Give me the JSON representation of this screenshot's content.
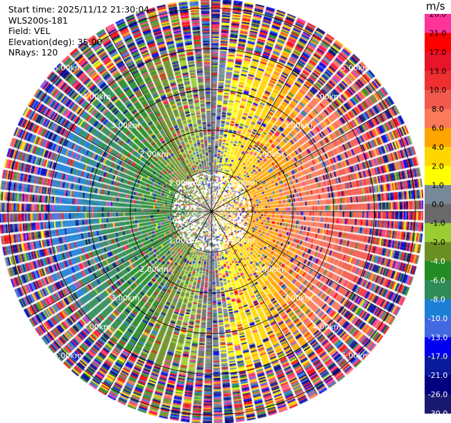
{
  "info": {
    "start_time": "Start time: 2025/11/12 21:30:04",
    "instrument": "WLS200s-181",
    "field": "Field: VEL",
    "elevation": "Elevation(deg): 35.00",
    "nrays": "NRays: 120"
  },
  "colorbar": {
    "unit": "m/s",
    "tick_labels": [
      "26.0",
      "21.0",
      "17.0",
      "13.0",
      "10.0",
      "8.0",
      "6.0",
      "4.0",
      "2.0",
      "1.0",
      "0.0",
      "-1.0",
      "-2.0",
      "-4.0",
      "-6.0",
      "-8.0",
      "-10.0",
      "-13.0",
      "-17.0",
      "-21.0",
      "-26.0",
      "-30.0"
    ],
    "colors": [
      "#ff3399",
      "#ff0000",
      "#e8142a",
      "#f03030",
      "#f25a4e",
      "#fa7a5a",
      "#ffa500",
      "#ffd700",
      "#ffff00",
      "#778899",
      "#696969",
      "#9acd32",
      "#6b8e23",
      "#228b22",
      "#2e8b57",
      "#1e7fd6",
      "#4169e1",
      "#0000ee",
      "#0a1a9c",
      "#000080",
      "#191970"
    ]
  },
  "chart_data": {
    "type": "heatmap",
    "projection": "polar PPI",
    "field": "VEL",
    "units": "m/s",
    "nrays": 120,
    "max_range_km": 5.2,
    "range_ring_labels": [
      "1.00km",
      "2.00km",
      "3.00km",
      "4.00km",
      "5.00km"
    ],
    "ring_ranges_km": [
      1,
      2,
      3,
      4,
      5
    ],
    "pattern": {
      "positive_velocity_direction_deg": 90,
      "negative_velocity_direction_deg": 270,
      "inner_speed_ms": 3,
      "outer_speed_ms": 12,
      "noise_begins_km": 4.0
    }
  }
}
